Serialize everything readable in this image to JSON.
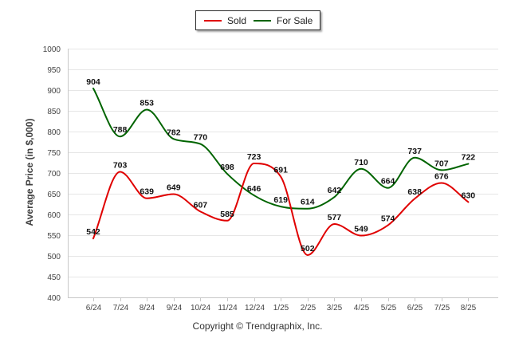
{
  "legend": {
    "sold_label": "Sold",
    "for_sale_label": "For Sale"
  },
  "footer": {
    "copyright": "Copyright © Trendgraphix, Inc."
  },
  "chart_data": {
    "type": "line",
    "title": "",
    "xlabel": "",
    "ylabel": "Average Price (in $,000)",
    "ylim": [
      400,
      1000
    ],
    "yticks": [
      400,
      450,
      500,
      550,
      600,
      650,
      700,
      750,
      800,
      850,
      900,
      950,
      1000
    ],
    "grid": true,
    "legend_position": "top-center",
    "categories": [
      "6/24",
      "7/24",
      "8/24",
      "9/24",
      "10/24",
      "11/24",
      "12/24",
      "1/25",
      "2/25",
      "3/25",
      "4/25",
      "5/25",
      "6/25",
      "7/25",
      "8/25"
    ],
    "series": [
      {
        "name": "Sold",
        "color": "#e00000",
        "values": [
          542,
          703,
          639,
          649,
          607,
          585,
          723,
          691,
          502,
          577,
          549,
          574,
          638,
          676,
          630
        ],
        "labels": [
          "542",
          "703",
          "639",
          "649",
          "607",
          "585",
          "723",
          "691",
          "502",
          "577",
          "549",
          "574",
          "638",
          "676",
          "630"
        ]
      },
      {
        "name": "For Sale",
        "color": "#006400",
        "values": [
          904,
          788,
          853,
          782,
          770,
          698,
          646,
          619,
          614,
          642,
          710,
          664,
          737,
          707,
          722
        ],
        "labels": [
          "904",
          "788",
          "853",
          "782",
          "770",
          "698",
          "646",
          "619",
          "614",
          "642",
          "710",
          "664",
          "737",
          "707",
          "722"
        ]
      }
    ]
  }
}
